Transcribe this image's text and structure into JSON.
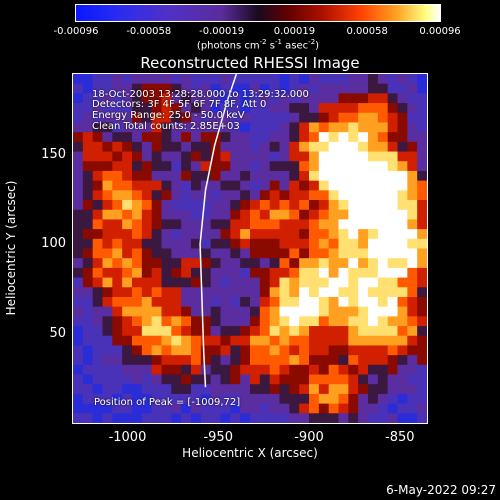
{
  "colorbar": {
    "ticks": [
      "-0.00096",
      "-0.00058",
      "-0.00019",
      "0.00019",
      "0.00058",
      "0.00096"
    ],
    "units_text": "(photons cm",
    "units_sup1": "-2",
    "units_mid": " s",
    "units_sup2": "-1",
    "units_end": " asec",
    "units_sup3": "-2",
    "units_close": ")"
  },
  "chart_data": {
    "type": "heatmap",
    "title": "Reconstructed RHESSI Image",
    "xlabel": "Heliocentric X (arcsec)",
    "ylabel": "Heliocentric Y (arcsec)",
    "xlim": [
      -1030,
      -835
    ],
    "ylim": [
      0,
      195
    ],
    "x_ticks": [
      "-1000",
      "-950",
      "-900",
      "-850"
    ],
    "x_tick_values": [
      -1000,
      -950,
      -900,
      -850
    ],
    "y_ticks": [
      "50",
      "100",
      "150"
    ],
    "y_tick_values": [
      50,
      100,
      150
    ],
    "color_range": [
      -0.00096,
      0.00096
    ],
    "limb_curve": [
      [
        -957,
        20
      ],
      [
        -958,
        40
      ],
      [
        -959,
        70
      ],
      [
        -960,
        100
      ],
      [
        -957,
        130
      ],
      [
        -952,
        155
      ],
      [
        -945,
        180
      ],
      [
        -940,
        195
      ]
    ],
    "peak_position": [
      -1009,
      72
    ]
  },
  "info": {
    "line1": "18-Oct-2003 13:28:28.000 to 13:29:32.000",
    "line2": "Detectors: 3F 4F 5F 6F 7F 8F, Att 0",
    "line3": "Energy Range: 25.0 - 50.0 keV",
    "line4": "Clean     Total counts: 2.85E+03",
    "peak": "Position of Peak = [-1009,72]"
  },
  "footer": {
    "date": "6-May-2022 09:27"
  }
}
